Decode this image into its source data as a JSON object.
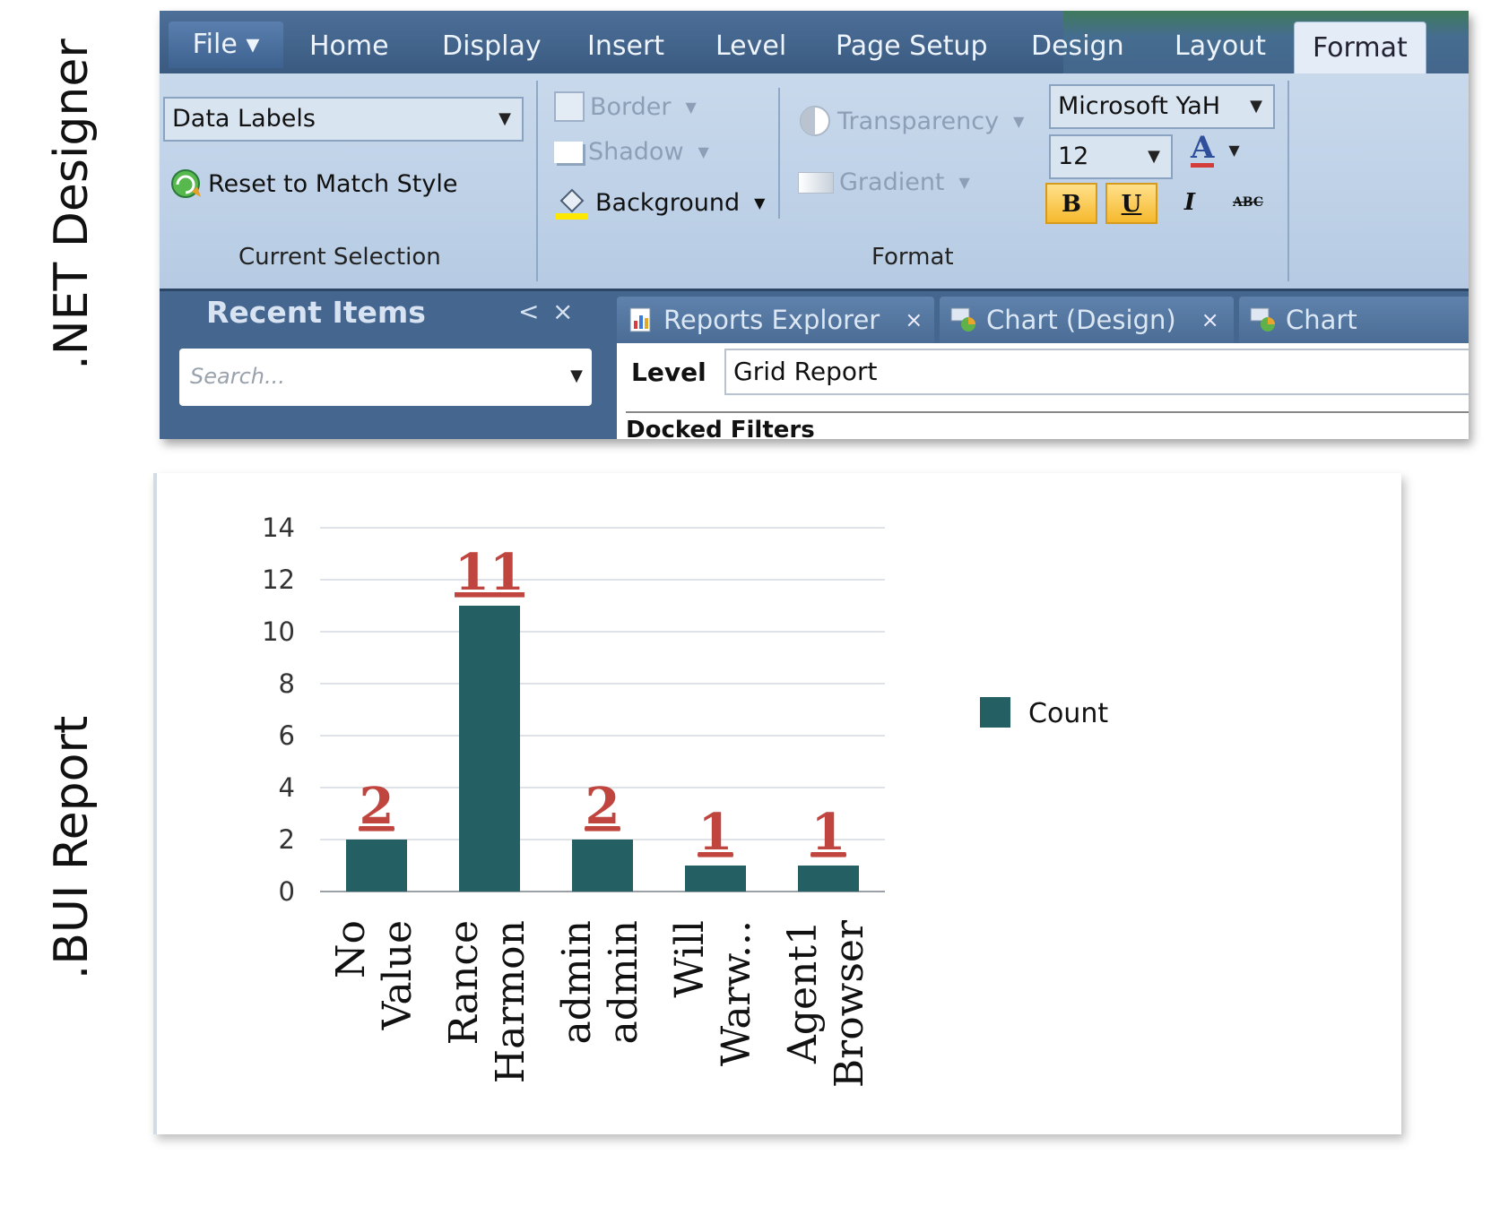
{
  "labels": {
    "designer": ".NET Designer",
    "report": ".BUI Report"
  },
  "designer": {
    "tabs": [
      "File",
      "Home",
      "Display",
      "Insert",
      "Level",
      "Page Setup",
      "Design",
      "Layout",
      "Format"
    ],
    "current_selection": {
      "combo_value": "Data Labels",
      "reset_label": "Reset to Match Style",
      "group_label": "Current Selection"
    },
    "format": {
      "border": "Border",
      "shadow": "Shadow",
      "background": "Background",
      "transparency": "Transparency",
      "gradient": "Gradient",
      "font_name": "Microsoft YaH",
      "font_size": "12",
      "bold": "B",
      "underline": "U",
      "italic": "I",
      "strike": "ABC",
      "font_color_glyph": "A",
      "group_label": "Format"
    },
    "recent": {
      "title": "Recent Items",
      "collapse": "<",
      "close": "×",
      "search_placeholder": "Search..."
    },
    "doc_tabs": [
      {
        "label": "Reports Explorer",
        "close": "×"
      },
      {
        "label": "Chart (Design)",
        "close": "×"
      },
      {
        "label": "Chart"
      }
    ],
    "level": {
      "label": "Level",
      "value": "Grid Report"
    },
    "docked_filters": "Docked Filters",
    "colors": {
      "ribbon": "#c9d9ec",
      "frame": "#3e5e85",
      "highlight": "#f6b92d"
    }
  },
  "chart_data": {
    "type": "bar",
    "categories": [
      [
        "No",
        "Value"
      ],
      [
        "Rance",
        "Harmon"
      ],
      [
        "admin",
        "admin"
      ],
      [
        "Will",
        "Warw..."
      ],
      [
        "Agent1",
        "Browser"
      ]
    ],
    "series": [
      {
        "name": "Count",
        "values": [
          2,
          11,
          2,
          1,
          1
        ],
        "color": "#245f64"
      }
    ],
    "data_labels": [
      "2",
      "11",
      "2",
      "1",
      "1"
    ],
    "yticks": [
      "0",
      "2",
      "4",
      "6",
      "8",
      "10",
      "12",
      "14"
    ],
    "ylim": [
      0,
      14
    ],
    "grid": true,
    "legend": "right",
    "data_label_color": "#c0453f"
  }
}
